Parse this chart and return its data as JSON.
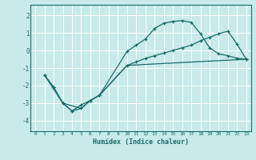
{
  "xlabel": "Humidex (Indice chaleur)",
  "background_color": "#c8eaea",
  "grid_color": "#b0d8d8",
  "line_color": "#1a6b6b",
  "xlim": [
    -0.5,
    23.5
  ],
  "ylim": [
    -4.6,
    2.6
  ],
  "yticks": [
    -4,
    -3,
    -2,
    -1,
    0,
    1,
    2
  ],
  "xticks": [
    0,
    1,
    2,
    3,
    4,
    5,
    6,
    7,
    8,
    9,
    10,
    11,
    12,
    13,
    14,
    15,
    16,
    17,
    18,
    19,
    20,
    21,
    22,
    23
  ],
  "line1_x": [
    1,
    2,
    3,
    4,
    5,
    6,
    7,
    10,
    11,
    12,
    13,
    14,
    15,
    16,
    17,
    18,
    19,
    20,
    21,
    22,
    23
  ],
  "line1_y": [
    -1.4,
    -2.1,
    -3.0,
    -3.45,
    -3.1,
    -2.85,
    -2.55,
    -0.05,
    0.3,
    0.65,
    1.25,
    1.55,
    1.65,
    1.7,
    1.6,
    0.95,
    0.15,
    -0.2,
    -0.3,
    -0.45,
    -0.5
  ],
  "line2_x": [
    1,
    2,
    3,
    4,
    5,
    6,
    7,
    10,
    11,
    12,
    13,
    14,
    15,
    16,
    17,
    18,
    19,
    20,
    21,
    22,
    23
  ],
  "line2_y": [
    -1.4,
    -2.1,
    -3.0,
    -3.45,
    -3.3,
    -2.85,
    -2.55,
    -0.85,
    -0.65,
    -0.45,
    -0.3,
    -0.15,
    -0.0,
    0.15,
    0.3,
    0.55,
    0.75,
    0.95,
    1.1,
    0.35,
    -0.5
  ],
  "line3_x": [
    1,
    3,
    5,
    6,
    7,
    10,
    23
  ],
  "line3_y": [
    -1.4,
    -3.0,
    -3.3,
    -2.85,
    -2.55,
    -0.85,
    -0.5
  ]
}
